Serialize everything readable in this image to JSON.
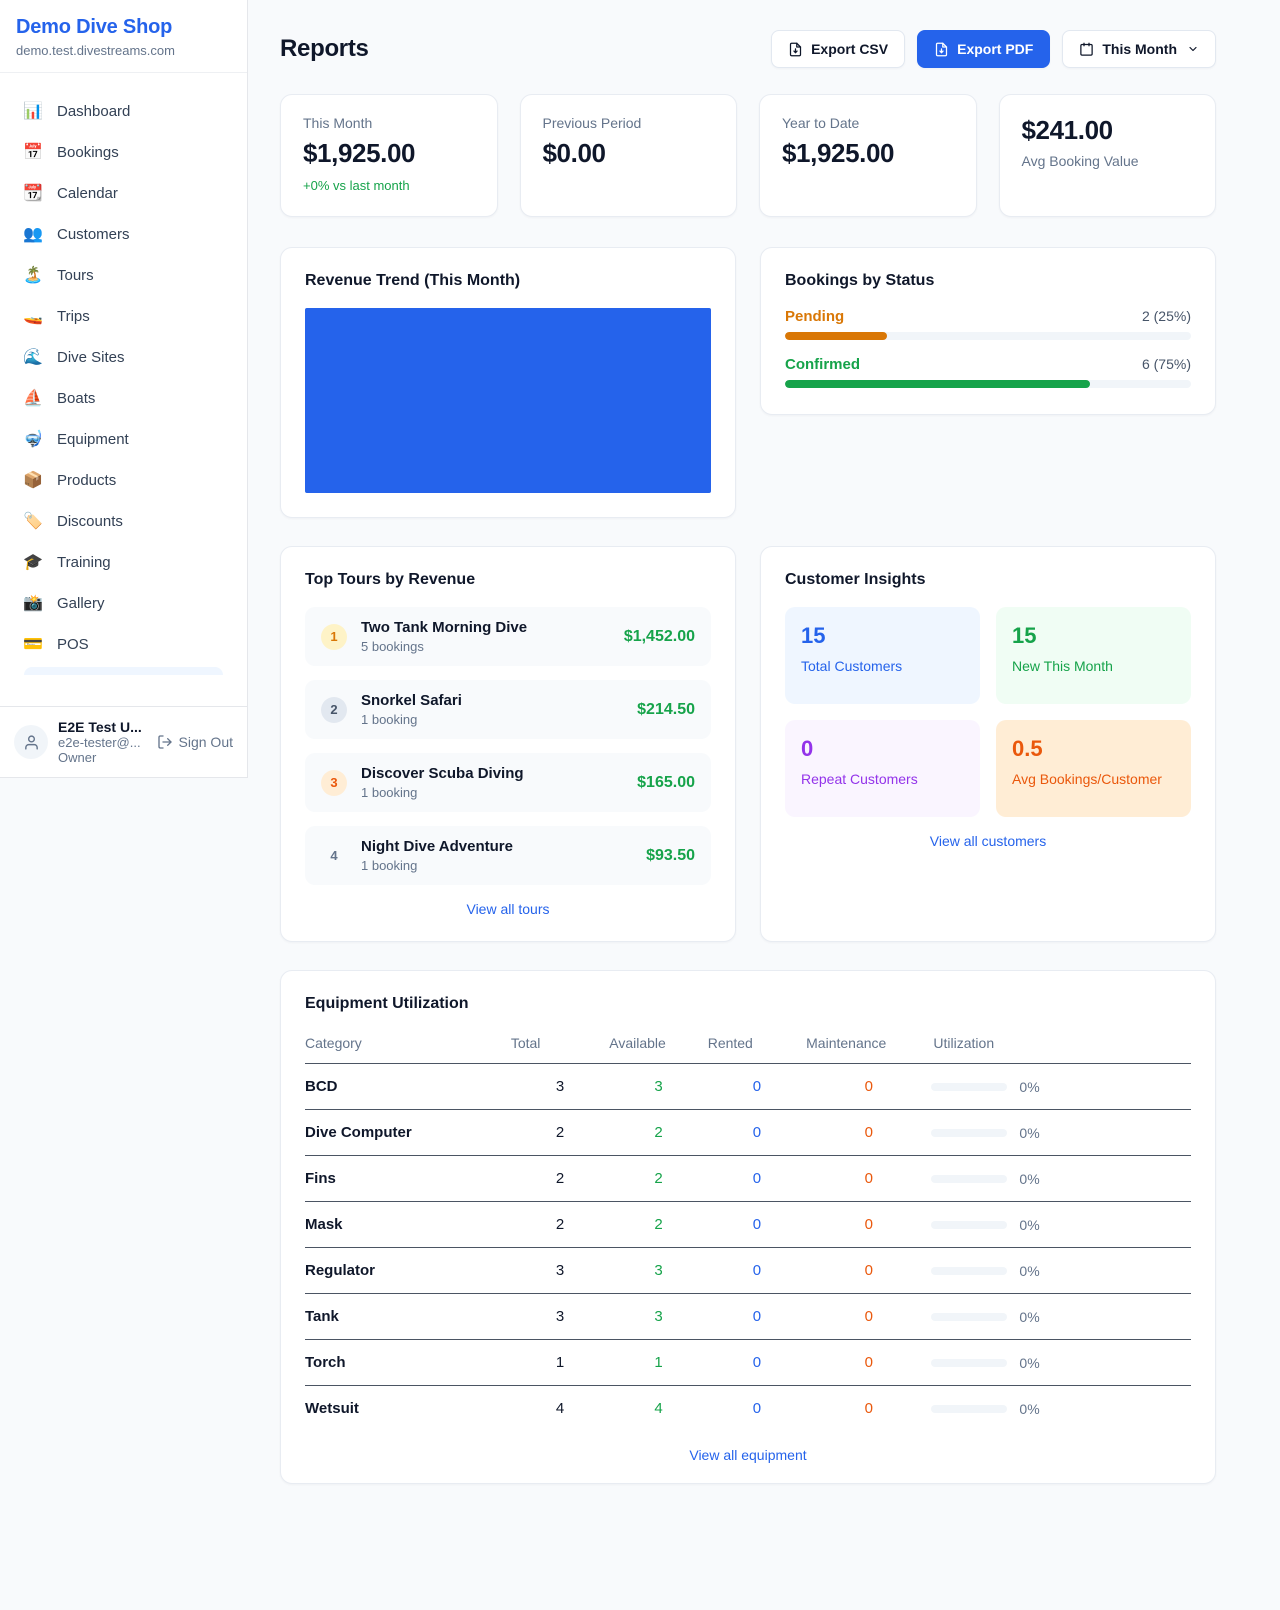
{
  "colors": {
    "accent_blue": "#2563eb",
    "green": "#16a34a",
    "amber": "#d97706",
    "orange": "#ea580c",
    "purple": "#9333ea",
    "page_bg": "#f8fafc"
  },
  "sidebar": {
    "shop_name": "Demo Dive Shop",
    "shop_domain": "demo.test.divestreams.com",
    "items": [
      {
        "icon": "📊",
        "label": "Dashboard"
      },
      {
        "icon": "📅",
        "label": "Bookings"
      },
      {
        "icon": "📆",
        "label": "Calendar"
      },
      {
        "icon": "👥",
        "label": "Customers"
      },
      {
        "icon": "🏝️",
        "label": "Tours"
      },
      {
        "icon": "🚤",
        "label": "Trips"
      },
      {
        "icon": "🌊",
        "label": "Dive Sites"
      },
      {
        "icon": "⛵",
        "label": "Boats"
      },
      {
        "icon": "🤿",
        "label": "Equipment"
      },
      {
        "icon": "📦",
        "label": "Products"
      },
      {
        "icon": "🏷️",
        "label": "Discounts"
      },
      {
        "icon": "🎓",
        "label": "Training"
      },
      {
        "icon": "📸",
        "label": "Gallery"
      },
      {
        "icon": "💳",
        "label": "POS"
      }
    ],
    "user": {
      "name": "E2E Test U...",
      "email": "e2e-tester@...",
      "role": "Owner",
      "sign_out": "Sign Out"
    }
  },
  "header": {
    "title": "Reports",
    "export_csv": "Export CSV",
    "export_pdf": "Export PDF",
    "period": "This Month"
  },
  "stats": {
    "this_month": {
      "label": "This Month",
      "value": "$1,925.00",
      "delta": "+0% vs last month"
    },
    "previous": {
      "label": "Previous Period",
      "value": "$0.00"
    },
    "ytd": {
      "label": "Year to Date",
      "value": "$1,925.00"
    },
    "avg": {
      "value": "$241.00",
      "label": "Avg Booking Value"
    }
  },
  "revenue_trend": {
    "title": "Revenue Trend (This Month)"
  },
  "chart_data": [
    {
      "type": "bar",
      "title": "Revenue Trend (This Month)",
      "categories": [
        "This Month"
      ],
      "values": [
        1925
      ],
      "bar_color": "#2563eb",
      "note": "single full-width bar, no axes shown"
    },
    {
      "type": "bar",
      "title": "Bookings by Status",
      "categories": [
        "Pending",
        "Confirmed"
      ],
      "values": [
        2,
        6
      ],
      "percentages": [
        25,
        75
      ]
    }
  ],
  "bookings_status": {
    "title": "Bookings by Status",
    "rows": [
      {
        "label": "Pending",
        "count": "2 (25%)",
        "pct": 25
      },
      {
        "label": "Confirmed",
        "count": "6 (75%)",
        "pct": 75
      }
    ]
  },
  "top_tours": {
    "title": "Top Tours by Revenue",
    "items": [
      {
        "rank": "1",
        "name": "Two Tank Morning Dive",
        "bookings": "5 bookings",
        "revenue": "$1,452.00"
      },
      {
        "rank": "2",
        "name": "Snorkel Safari",
        "bookings": "1 booking",
        "revenue": "$214.50"
      },
      {
        "rank": "3",
        "name": "Discover Scuba Diving",
        "bookings": "1 booking",
        "revenue": "$165.00"
      },
      {
        "rank": "4",
        "name": "Night Dive Adventure",
        "bookings": "1 booking",
        "revenue": "$93.50"
      }
    ],
    "view_all": "View all tours"
  },
  "customer_insights": {
    "title": "Customer Insights",
    "tiles": [
      {
        "value": "15",
        "label": "Total Customers"
      },
      {
        "value": "15",
        "label": "New This Month"
      },
      {
        "value": "0",
        "label": "Repeat Customers"
      },
      {
        "value": "0.5",
        "label": "Avg Bookings/Customer"
      }
    ],
    "view_all": "View all customers"
  },
  "equipment": {
    "title": "Equipment Utilization",
    "columns": [
      "Category",
      "Total",
      "Available",
      "Rented",
      "Maintenance",
      "Utilization"
    ],
    "rows": [
      {
        "category": "BCD",
        "total": "3",
        "available": "3",
        "rented": "0",
        "maintenance": "0",
        "utilization": "0%"
      },
      {
        "category": "Dive Computer",
        "total": "2",
        "available": "2",
        "rented": "0",
        "maintenance": "0",
        "utilization": "0%"
      },
      {
        "category": "Fins",
        "total": "2",
        "available": "2",
        "rented": "0",
        "maintenance": "0",
        "utilization": "0%"
      },
      {
        "category": "Mask",
        "total": "2",
        "available": "2",
        "rented": "0",
        "maintenance": "0",
        "utilization": "0%"
      },
      {
        "category": "Regulator",
        "total": "3",
        "available": "3",
        "rented": "0",
        "maintenance": "0",
        "utilization": "0%"
      },
      {
        "category": "Tank",
        "total": "3",
        "available": "3",
        "rented": "0",
        "maintenance": "0",
        "utilization": "0%"
      },
      {
        "category": "Torch",
        "total": "1",
        "available": "1",
        "rented": "0",
        "maintenance": "0",
        "utilization": "0%"
      },
      {
        "category": "Wetsuit",
        "total": "4",
        "available": "4",
        "rented": "0",
        "maintenance": "0",
        "utilization": "0%"
      }
    ],
    "view_all": "View all equipment"
  }
}
